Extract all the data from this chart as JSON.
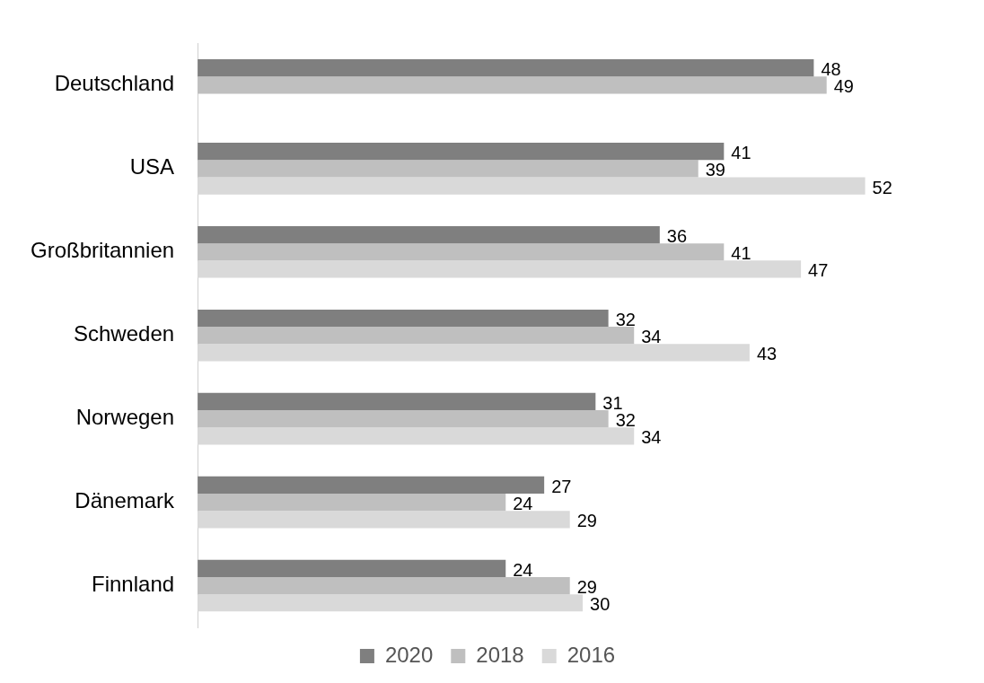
{
  "chart_data": {
    "type": "bar",
    "orientation": "horizontal",
    "categories": [
      "Deutschland",
      "USA",
      "Großbritannien",
      "Schweden",
      "Norwegen",
      "Dänemark",
      "Finnland"
    ],
    "series": [
      {
        "name": "2020",
        "color": "#7f7f7f",
        "values": [
          48,
          41,
          36,
          32,
          31,
          27,
          24
        ]
      },
      {
        "name": "2018",
        "color": "#bfbfbf",
        "values": [
          49,
          39,
          41,
          34,
          32,
          24,
          29
        ]
      },
      {
        "name": "2016",
        "color": "#d9d9d9",
        "values": [
          null,
          52,
          47,
          43,
          34,
          29,
          30
        ]
      }
    ],
    "data_labels": true,
    "legend": "bottom",
    "grid": false
  }
}
